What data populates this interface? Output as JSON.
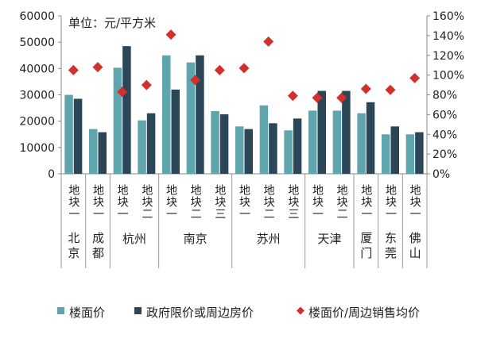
{
  "chart_data": {
    "type": "bar",
    "annotation": "单位：元/平方米",
    "categories": [
      {
        "plot": "地块一",
        "city": "北京"
      },
      {
        "plot": "地块一",
        "city": "成都"
      },
      {
        "plot": "地块一",
        "city": "杭州"
      },
      {
        "plot": "地块二",
        "city": "杭州"
      },
      {
        "plot": "地块一",
        "city": "南京"
      },
      {
        "plot": "地块二",
        "city": "南京"
      },
      {
        "plot": "地块三",
        "city": "南京"
      },
      {
        "plot": "地块一",
        "city": "苏州"
      },
      {
        "plot": "地块二",
        "city": "苏州"
      },
      {
        "plot": "地块三",
        "city": "苏州"
      },
      {
        "plot": "地块一",
        "city": "天津"
      },
      {
        "plot": "地块二",
        "city": "天津"
      },
      {
        "plot": "地块一",
        "city": "厦门"
      },
      {
        "plot": "地块一",
        "city": "东莞"
      },
      {
        "plot": "地块一",
        "city": "佛山"
      }
    ],
    "cities": [
      "北京",
      "成都",
      "杭州",
      "南京",
      "苏州",
      "天津",
      "厦门",
      "东莞",
      "佛山"
    ],
    "series": [
      {
        "name": "楼面价",
        "type": "bar",
        "axis": "left",
        "color": "#5ea5ae",
        "values": [
          30000,
          17000,
          40300,
          20300,
          45000,
          42300,
          23800,
          18000,
          26000,
          16500,
          24000,
          24000,
          23000,
          15000,
          15000
        ]
      },
      {
        "name": "政府限价或周边房价",
        "type": "bar",
        "axis": "left",
        "color": "#2b4657",
        "values": [
          28500,
          15800,
          48500,
          23000,
          32000,
          45000,
          22600,
          17000,
          19200,
          21000,
          31500,
          31500,
          27200,
          18000,
          15800
        ]
      },
      {
        "name": "楼面价/周边销售均价",
        "type": "scatter",
        "marker": "diamond",
        "axis": "right",
        "color": "#d0312d",
        "values": [
          105,
          108,
          83,
          90,
          141,
          95,
          105,
          107,
          134,
          79,
          77,
          77,
          86,
          85,
          97
        ]
      }
    ],
    "y_left": {
      "ylim": [
        0,
        60000
      ],
      "ticks": [
        "0",
        "10000",
        "20000",
        "30000",
        "40000",
        "50000",
        "60000"
      ]
    },
    "y_right": {
      "ylim": [
        0,
        160
      ],
      "unit": "%",
      "ticks": [
        "0%",
        "20%",
        "40%",
        "60%",
        "80%",
        "100%",
        "120%",
        "140%",
        "160%"
      ]
    },
    "grid": false,
    "legend": "bottom"
  }
}
